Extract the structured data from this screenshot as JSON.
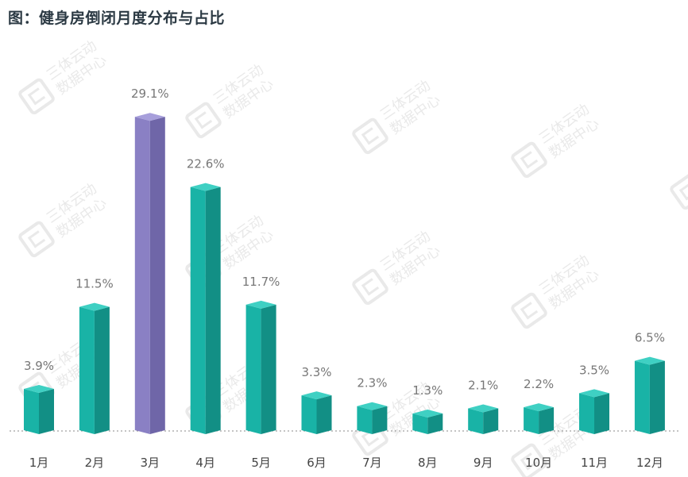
{
  "header": {
    "title": "图：健身房倒闭月度分布与占比"
  },
  "watermark": {
    "line1": "三体云动",
    "line2": "数据中心"
  },
  "colors": {
    "bar": "#19b3a6",
    "bar_top": "#3fd0c3",
    "bar_side": "#128f85",
    "highlight": "#8a80c4",
    "highlight_top": "#a79fdb",
    "highlight_side": "#6f66a8",
    "label": "#777777",
    "axis_label": "#444444",
    "baseline": "#888888"
  },
  "chart_data": {
    "type": "bar",
    "categories": [
      "1月",
      "2月",
      "3月",
      "4月",
      "5月",
      "6月",
      "7月",
      "8月",
      "9月",
      "10月",
      "11月",
      "12月"
    ],
    "values": [
      3.9,
      11.5,
      29.1,
      22.6,
      11.7,
      3.3,
      2.3,
      1.3,
      2.1,
      2.2,
      3.5,
      6.5
    ],
    "labels": [
      "3.9%",
      "11.5%",
      "29.1%",
      "22.6%",
      "11.7%",
      "3.3%",
      "2.3%",
      "1.3%",
      "2.1%",
      "2.2%",
      "3.5%",
      "6.5%"
    ],
    "highlight_index": 2,
    "title": "图：健身房倒闭月度分布与占比",
    "xlabel": "",
    "ylabel": "",
    "ylim": [
      0,
      30
    ],
    "grid": false,
    "legend": "none"
  }
}
